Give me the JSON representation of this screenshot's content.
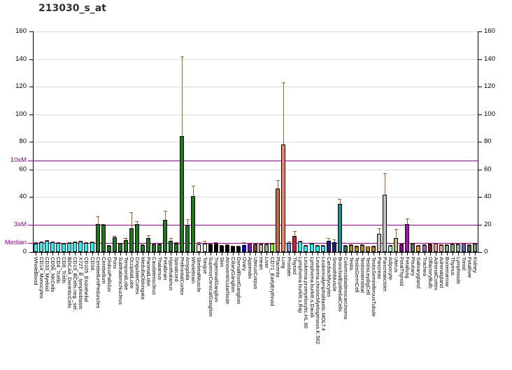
{
  "title": "213030_s_at",
  "axis": {
    "ymax": 160,
    "gridline_values": [
      20,
      40,
      60,
      80,
      100,
      120,
      140,
      160
    ],
    "left_ticks": [
      {
        "text": "160",
        "value": 160
      },
      {
        "text": "140",
        "value": 140
      },
      {
        "text": "120",
        "value": 120
      },
      {
        "text": "100",
        "value": 100
      },
      {
        "text": "80",
        "value": 80
      },
      {
        "text": "60",
        "value": 60
      },
      {
        "text": "40",
        "value": 40
      },
      {
        "text": "0",
        "value": 0
      }
    ],
    "right_ticks": [
      {
        "text": "160",
        "value": 160
      },
      {
        "text": "140",
        "value": 140
      },
      {
        "text": "120",
        "value": 120
      },
      {
        "text": "100",
        "value": 100
      },
      {
        "text": "80",
        "value": 80
      },
      {
        "text": "60",
        "value": 60
      },
      {
        "text": "40",
        "value": 40
      },
      {
        "text": "20",
        "value": 20
      },
      {
        "text": "0",
        "value": 0
      }
    ],
    "marker_lines": [
      {
        "text": "10xM",
        "value": 66.5
      },
      {
        "text": "3xM",
        "value": 20
      },
      {
        "text": "Median",
        "value": 6.65
      }
    ]
  },
  "colors": {
    "reference_line": "#8b008b",
    "marker_label": "#990099",
    "gridline": "#dcdcdc",
    "axis": "#000000",
    "error_bar_large": "#a5622d",
    "error_bar_small": "#8b2323",
    "title": "#303030"
  },
  "chart_data": {
    "type": "bar",
    "title": "213030_s_at",
    "ylim": [
      0,
      160
    ],
    "yticks": [
      0,
      20,
      40,
      60,
      80,
      100,
      120,
      140,
      160
    ],
    "grid": true,
    "legend": false,
    "reference_lines": [
      {
        "label": "Median",
        "value": 6.65
      },
      {
        "label": "3xM",
        "value": 20
      },
      {
        "label": "10xM",
        "value": 66.5
      }
    ],
    "categories": [
      "WholeBlood",
      "CD14_Monocytes",
      "CD33_Myeloid",
      "CD56_NKCells",
      "CD4_Tcells",
      "CD8_Tcells",
      "BDCA4_DentriticCells",
      "CD19_BCells.neg._sel..",
      "X72T_B_lymphoblasts",
      "CD105_Endothelial",
      "CD34.",
      "CerebellumPeduncles",
      "Cerebellum",
      "GlobusPallidus",
      "Pons",
      "SubthalamicNucleus",
      "TemporalLobe",
      "OccipitalLobe",
      "CingulateCortex",
      "MedullaOblongata",
      "ParietalLobe",
      "Caudatenucleus",
      "Thalamus",
      "Fetalbrain",
      "Hypothalamus",
      "Spinalcord",
      "PrefrontalCortex",
      "Amygdala",
      "Wholebrain",
      "SkeletalMuscle",
      "Tongue",
      "SuperiorCervicalGanglion",
      "TrigeminalGanglion",
      "Skin",
      "AtrioventricularNode",
      "CiliaryGanglion",
      "DorsalRootGanglion",
      "Ovary",
      "Appendix",
      "UterusCorpus",
      "Heart",
      "Liver",
      "CD71_EarlyErythroid",
      "Placenta",
      "Lung",
      "Prostate",
      "Thyroid",
      "Lymphoma.burkitt.s.Raji",
      "Leukemia.promyelocytic.HL.60",
      "Lymphoma.burkitt.s.Daudi",
      "Leukemia.chronicMyelogenous.K.562",
      "Leukemialymphoblastic.MOLT.4",
      "CardiacMyocytes",
      "SmoothMuscle",
      "BronchialEpithelialCells",
      "Colorectaladenocarcinoma",
      "Testis",
      "TestisGermCell",
      "TestisInterstitial",
      "TestisLeydigCell",
      "TestisSeminiferousTubule",
      "Pancreas",
      "PancreaticIslet",
      "Adipocyte",
      "Uterus",
      "FetalThyroid",
      "Fetallung",
      "Pituitary",
      "Salivarygland",
      "Trachea",
      "OlfactoryBulb",
      "AdrenalCortex",
      "Adrenalgland",
      "Bonemarrow",
      "Thymus",
      "Lymphnode",
      "Tonsil",
      "Fetalliver",
      "Kidney"
    ],
    "values": [
      6.2,
      7.0,
      8.0,
      7.2,
      6.5,
      6.3,
      6.8,
      7.0,
      7.8,
      6.8,
      7.0,
      20.5,
      19.5,
      4.5,
      10.5,
      6.0,
      8.5,
      17.0,
      20.5,
      5.0,
      10.0,
      5.5,
      5.5,
      23.5,
      8.0,
      6.0,
      84.0,
      19.0,
      40.5,
      5.5,
      6.0,
      5.6,
      6.0,
      4.7,
      5.0,
      4.0,
      4.0,
      5.2,
      5.9,
      5.5,
      5.5,
      5.8,
      6.3,
      46.0,
      78.0,
      6.8,
      11.6,
      7.4,
      4.8,
      6.0,
      4.7,
      4.7,
      8.0,
      7.3,
      35.0,
      4.7,
      5.0,
      4.2,
      5.0,
      3.9,
      4.2,
      13.0,
      41.5,
      4.5,
      10.0,
      5.5,
      20.4,
      5.9,
      4.7,
      5.0,
      5.5,
      5.9,
      5.0,
      5.0,
      5.5,
      5.5,
      5.9,
      5.0,
      5.9
    ],
    "errors_upper": [
      7.0,
      7.5,
      8.5,
      7.6,
      7.0,
      6.8,
      7.3,
      7.6,
      8.3,
      7.3,
      7.6,
      26.0,
      20.5,
      5.0,
      11.5,
      6.5,
      10.0,
      29.0,
      22.5,
      5.5,
      12.0,
      6.0,
      6.0,
      30.0,
      10.0,
      7.0,
      142.0,
      24.0,
      48.0,
      7.0,
      8.0,
      6.0,
      7.0,
      5.2,
      5.6,
      4.5,
      4.5,
      7.0,
      6.3,
      6.0,
      6.0,
      6.2,
      6.8,
      52.0,
      123.0,
      7.4,
      15.0,
      8.0,
      5.2,
      6.6,
      5.0,
      5.0,
      10.0,
      9.0,
      38.5,
      5.0,
      5.5,
      4.8,
      5.4,
      4.3,
      4.6,
      17.0,
      57.0,
      5.0,
      16.5,
      6.0,
      24.5,
      6.5,
      5.0,
      5.5,
      6.0,
      6.3,
      5.5,
      5.5,
      6.0,
      6.0,
      6.3,
      5.5,
      6.5
    ],
    "bar_colors": [
      "#00FFFF",
      "#00FFFF",
      "#00FFFF",
      "#00FFFF",
      "#00FFFF",
      "#00FFFF",
      "#00FFFF",
      "#00FFFF",
      "#00FFFF",
      "#00FFFF",
      "#00FFFF",
      "#1C7C1C",
      "#1C7C1C",
      "#1C7C1C",
      "#1C7C1C",
      "#1C7C1C",
      "#1C7C1C",
      "#1C7C1C",
      "#1C7C1C",
      "#1C7C1C",
      "#1C7C1C",
      "#1C7C1C",
      "#1C7C1C",
      "#1C7C1C",
      "#1C7C1C",
      "#1C7C1C",
      "#1C7C1C",
      "#1C7C1C",
      "#1C7C1C",
      "#FFEBCD",
      "#FFEBCD",
      "#000000",
      "#000000",
      "#000000",
      "#000000",
      "#000000",
      "#000000",
      "#0000EE",
      "#9400D3",
      "#8B3A3A",
      "#D2B48C",
      "#90A8A8",
      "#7CFC00",
      "#D2691E",
      "#FF7F50",
      "#6495ED",
      "#DC143C",
      "#00FFFF",
      "#00FFFF",
      "#00FFFF",
      "#00FFFF",
      "#00FFFF",
      "#20208B",
      "#20208B",
      "#199090",
      "#1E7272",
      "#B8860B",
      "#B8860B",
      "#B8860B",
      "#B8860B",
      "#B8860B",
      "#C0C0C0",
      "#C0C0C0",
      "#7FFFD4",
      "#BDB76B",
      "#8B008B",
      "#A413B2",
      "#5F705F",
      "#FF8C00",
      "#9565C8",
      "#8B1A1A",
      "#E9967A",
      "#F0A0A0",
      "#79AB8D",
      "#79AB8D",
      "#8CBD9C",
      "#6A5ACD",
      "#4A665C",
      "#71987F"
    ]
  }
}
